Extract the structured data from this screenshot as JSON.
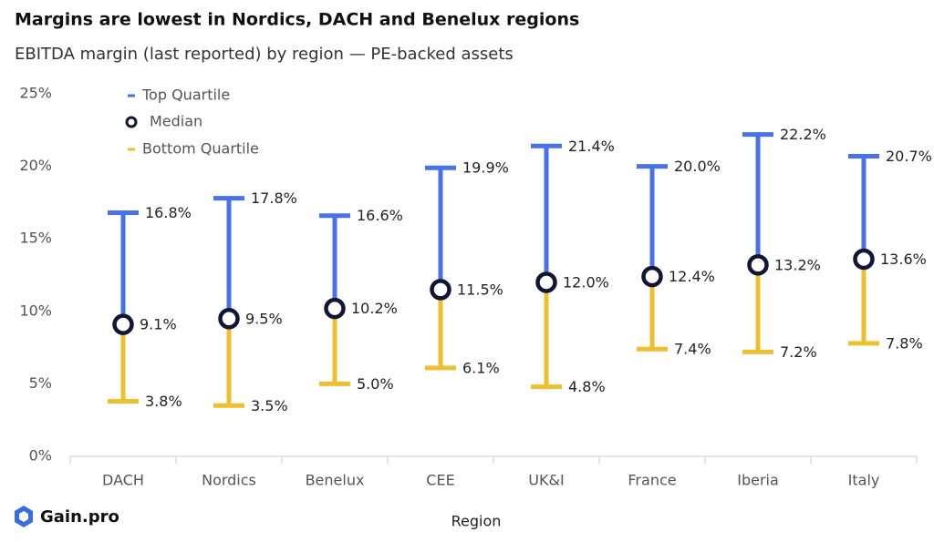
{
  "chart_data": {
    "type": "range",
    "title": "Margins are lowest in Nordics, DACH and Benelux regions",
    "subtitle": "EBITDA margin (last reported) by region — PE-backed assets",
    "x_label": "Region",
    "source": "Gain.pro",
    "categories": [
      "DACH",
      "Nordics",
      "Benelux",
      "CEE",
      "UK&I",
      "France",
      "Iberia",
      "Italy"
    ],
    "series": [
      {
        "name": "Top Quartile",
        "color": "#4a72e8",
        "values": [
          16.8,
          17.8,
          16.6,
          19.9,
          21.4,
          20.0,
          22.2,
          20.7
        ],
        "value_labels": [
          "16.8%",
          "17.8%",
          "16.6%",
          "19.9%",
          "21.4%",
          "20.0%",
          "22.2%",
          "20.7%"
        ]
      },
      {
        "name": "Median",
        "color": "#111634",
        "values": [
          9.1,
          9.5,
          10.2,
          11.5,
          12.0,
          12.4,
          13.2,
          13.6
        ],
        "value_labels": [
          "9.1%",
          "9.5%",
          "10.2%",
          "11.5%",
          "12.0%",
          "12.4%",
          "13.2%",
          "13.6%"
        ]
      },
      {
        "name": "Bottom Quartile",
        "color": "#ecc030",
        "values": [
          3.8,
          3.5,
          5.0,
          6.1,
          4.8,
          7.4,
          7.2,
          7.8
        ],
        "value_labels": [
          "3.8%",
          "3.5%",
          "5.0%",
          "6.1%",
          "4.8%",
          "7.4%",
          "7.2%",
          "7.8%"
        ]
      }
    ],
    "ylim": [
      0,
      25
    ],
    "yticks": [
      {
        "value": 0,
        "label": "0%"
      },
      {
        "value": 5,
        "label": "5%"
      },
      {
        "value": 10,
        "label": "10%"
      },
      {
        "value": 15,
        "label": "15%"
      },
      {
        "value": 20,
        "label": "20%"
      },
      {
        "value": 25,
        "label": "25%"
      }
    ],
    "grid": false,
    "legend": "top-left"
  }
}
